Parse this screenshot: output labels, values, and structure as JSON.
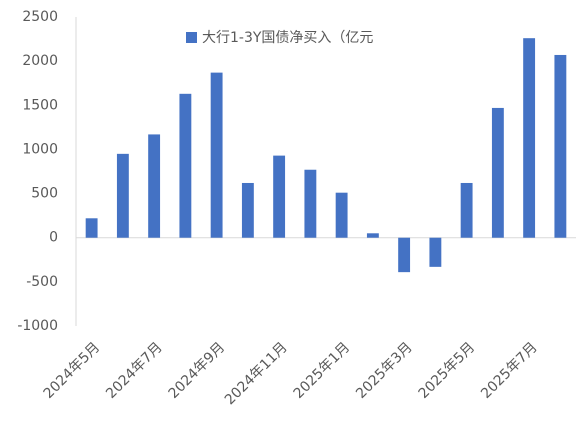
{
  "chart_data": {
    "type": "bar",
    "categories": [
      "2024年5月",
      null,
      "2024年7月",
      null,
      "2024年9月",
      null,
      "2024年11月",
      null,
      "2025年1月",
      null,
      "2025年3月",
      null,
      "2025年5月",
      null,
      "2025年7月",
      null
    ],
    "series": [
      {
        "name": "大行1-3Y国债净买入（亿元",
        "color": "#4472c4",
        "values": [
          220,
          950,
          1170,
          1630,
          1870,
          620,
          930,
          770,
          510,
          50,
          -390,
          -330,
          620,
          1470,
          2260,
          2070
        ]
      }
    ],
    "ylim": [
      -1000,
      2500
    ],
    "yticks": [
      -1000,
      -500,
      0,
      500,
      1000,
      1500,
      2000,
      2500
    ],
    "legend": "top"
  }
}
